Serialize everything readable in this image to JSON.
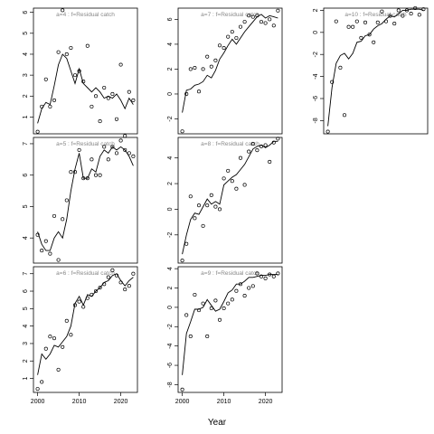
{
  "chart_data": {
    "type": "scatter",
    "layout": "3x3 grid of panels, columns filled top to bottom",
    "xlabel": "Year",
    "xlim": [
      1999,
      2024
    ],
    "xticks": [
      2000,
      2010,
      2020
    ],
    "point_style": "open circle",
    "line_style": "solid black line",
    "panels": [
      {
        "title": "a=4 : f=Residual catch",
        "ylim": [
          0.2,
          6.2
        ],
        "yticks": [
          1,
          2,
          3,
          4,
          5,
          6
        ],
        "points": {
          "x": [
            2000,
            2001,
            2002,
            2003,
            2004,
            2005,
            2006,
            2007,
            2008,
            2009,
            2010,
            2011,
            2012,
            2013,
            2014,
            2015,
            2016,
            2017,
            2018,
            2019,
            2020,
            2021,
            2022,
            2023
          ],
          "y": [
            0.3,
            1.5,
            2.8,
            1.5,
            1.8,
            4.1,
            6.1,
            4.0,
            4.3,
            3.0,
            3.2,
            2.7,
            4.4,
            1.5,
            2.0,
            0.8,
            2.4,
            1.9,
            2.1,
            0.9,
            3.5,
            0.1,
            2.2,
            1.8
          ]
        },
        "line": {
          "x": [
            2000,
            2001,
            2002,
            2003,
            2004,
            2005,
            2006,
            2007,
            2008,
            2009,
            2010,
            2011,
            2012,
            2013,
            2014,
            2015,
            2016,
            2017,
            2018,
            2019,
            2020,
            2021,
            2022,
            2023
          ],
          "y": [
            0.7,
            1.4,
            1.7,
            1.6,
            2.5,
            3.5,
            4.0,
            3.8,
            3.2,
            2.6,
            3.3,
            2.6,
            2.4,
            2.2,
            2.4,
            2.2,
            1.9,
            2.0,
            1.9,
            2.1,
            1.8,
            1.4,
            1.9,
            1.6
          ]
        }
      },
      {
        "title": "a=5 : f=Residual catch",
        "ylim": [
          3.2,
          7.2
        ],
        "yticks": [
          4,
          5,
          6,
          7
        ],
        "points": {
          "x": [
            2000,
            2001,
            2002,
            2003,
            2004,
            2005,
            2006,
            2007,
            2008,
            2009,
            2010,
            2011,
            2012,
            2013,
            2014,
            2015,
            2016,
            2017,
            2018,
            2019,
            2020,
            2021,
            2022,
            2023
          ],
          "y": [
            4.1,
            3.6,
            3.9,
            3.5,
            4.7,
            3.3,
            4.6,
            5.2,
            6.1,
            6.1,
            6.8,
            5.9,
            5.9,
            6.5,
            6.0,
            6.0,
            6.9,
            6.5,
            6.9,
            6.7,
            7.1,
            6.8,
            6.7,
            6.6
          ]
        },
        "line": {
          "x": [
            2000,
            2001,
            2002,
            2003,
            2004,
            2005,
            2006,
            2007,
            2008,
            2009,
            2010,
            2011,
            2012,
            2013,
            2014,
            2015,
            2016,
            2017,
            2018,
            2019,
            2020,
            2021,
            2022,
            2023
          ],
          "y": [
            4.2,
            3.8,
            3.6,
            3.6,
            4.0,
            4.2,
            4.0,
            4.6,
            5.5,
            6.2,
            6.7,
            5.9,
            5.9,
            6.2,
            6.1,
            6.6,
            6.8,
            6.7,
            6.9,
            6.8,
            6.9,
            6.8,
            6.6,
            6.3
          ]
        }
      },
      {
        "title": "a=6 : f=Residual catch",
        "ylim": [
          0.2,
          7.4
        ],
        "yticks": [
          1,
          2,
          3,
          4,
          5,
          6,
          7
        ],
        "points": {
          "x": [
            2000,
            2001,
            2002,
            2003,
            2004,
            2005,
            2006,
            2007,
            2008,
            2009,
            2010,
            2011,
            2012,
            2013,
            2014,
            2015,
            2016,
            2017,
            2018,
            2019,
            2020,
            2021,
            2022,
            2023
          ],
          "y": [
            0.4,
            0.8,
            2.7,
            3.4,
            3.3,
            1.5,
            2.8,
            4.3,
            3.5,
            5.2,
            5.4,
            5.1,
            5.6,
            5.8,
            6.0,
            6.2,
            6.4,
            6.8,
            7.2,
            6.9,
            6.5,
            6.1,
            6.3,
            7.0
          ]
        },
        "line": {
          "x": [
            2000,
            2001,
            2002,
            2003,
            2004,
            2005,
            2006,
            2007,
            2008,
            2009,
            2010,
            2011,
            2012,
            2013,
            2014,
            2015,
            2016,
            2017,
            2018,
            2019,
            2020,
            2021,
            2022,
            2023
          ],
          "y": [
            1.2,
            2.4,
            2.1,
            2.4,
            2.9,
            2.8,
            3.1,
            3.4,
            4.0,
            5.3,
            5.7,
            5.2,
            5.8,
            5.7,
            6.0,
            6.2,
            6.5,
            6.6,
            6.9,
            7.0,
            6.6,
            6.3,
            6.6,
            6.8
          ]
        }
      },
      {
        "title": "a=7 : f=Residual catch",
        "ylim": [
          -3.2,
          6.9
        ],
        "yticks": [
          -2,
          0,
          2,
          4,
          6
        ],
        "points": {
          "x": [
            2000,
            2001,
            2002,
            2003,
            2004,
            2005,
            2006,
            2007,
            2008,
            2009,
            2010,
            2011,
            2012,
            2013,
            2014,
            2015,
            2016,
            2017,
            2018,
            2019,
            2020,
            2021,
            2022,
            2023
          ],
          "y": [
            -3.0,
            0.0,
            2.0,
            2.1,
            0.2,
            2.0,
            3.0,
            2.2,
            2.7,
            3.9,
            3.7,
            4.6,
            5.0,
            4.5,
            5.4,
            5.8,
            6.3,
            6.2,
            6.3,
            5.8,
            5.7,
            6.0,
            5.5,
            6.7
          ]
        },
        "line": {
          "x": [
            2000,
            2001,
            2002,
            2003,
            2004,
            2005,
            2006,
            2007,
            2008,
            2009,
            2010,
            2011,
            2012,
            2013,
            2014,
            2015,
            2016,
            2017,
            2018,
            2019,
            2020,
            2021,
            2022,
            2023
          ],
          "y": [
            -1.5,
            0.3,
            0.4,
            0.7,
            0.8,
            1.0,
            1.5,
            1.3,
            1.9,
            2.8,
            3.3,
            3.9,
            4.4,
            4.0,
            4.5,
            5.0,
            5.4,
            5.8,
            6.2,
            6.4,
            6.1,
            6.3,
            6.2,
            6.1
          ]
        }
      },
      {
        "title": "a=8 : f=Residual catch",
        "ylim": [
          -4.2,
          5.6
        ],
        "yticks": [
          -2,
          0,
          2,
          4
        ],
        "points": {
          "x": [
            2000,
            2001,
            2002,
            2003,
            2004,
            2005,
            2006,
            2007,
            2008,
            2009,
            2010,
            2011,
            2012,
            2013,
            2014,
            2015,
            2016,
            2017,
            2018,
            2019,
            2020,
            2021,
            2022,
            2023
          ],
          "y": [
            -4.0,
            -2.7,
            1.0,
            -0.7,
            0.3,
            -1.3,
            0.3,
            1.1,
            0.2,
            0.0,
            2.4,
            3.0,
            2.2,
            1.6,
            4.0,
            1.9,
            4.5,
            5.1,
            4.6,
            4.9,
            5.0,
            3.7,
            5.2,
            5.5
          ]
        },
        "line": {
          "x": [
            2000,
            2001,
            2002,
            2003,
            2004,
            2005,
            2006,
            2007,
            2008,
            2009,
            2010,
            2011,
            2012,
            2013,
            2014,
            2015,
            2016,
            2017,
            2018,
            2019,
            2020,
            2021,
            2022,
            2023
          ],
          "y": [
            -3.5,
            -2.0,
            -0.8,
            -0.3,
            -0.4,
            0.2,
            0.8,
            0.4,
            0.6,
            0.4,
            1.9,
            2.2,
            2.5,
            2.7,
            3.1,
            3.5,
            4.1,
            4.7,
            4.9,
            5.0,
            4.8,
            5.0,
            5.3,
            5.3
          ]
        }
      },
      {
        "title": "a=9 : f=Residual catch",
        "ylim": [
          -8.8,
          4.2
        ],
        "yticks": [
          -8,
          -6,
          -4,
          -2,
          0,
          2,
          4
        ],
        "points": {
          "x": [
            2000,
            2001,
            2002,
            2003,
            2004,
            2005,
            2006,
            2007,
            2008,
            2009,
            2010,
            2011,
            2012,
            2013,
            2014,
            2015,
            2016,
            2017,
            2018,
            2019,
            2020,
            2021,
            2022,
            2023
          ],
          "y": [
            -8.5,
            -0.8,
            -3.0,
            1.3,
            -0.3,
            0.4,
            -3.0,
            -0.1,
            0.7,
            -1.3,
            -0.1,
            0.4,
            0.8,
            1.7,
            2.4,
            1.2,
            2.0,
            2.2,
            3.5,
            3.2,
            3.0,
            3.4,
            3.2,
            3.5
          ]
        },
        "line": {
          "x": [
            2000,
            2001,
            2002,
            2003,
            2004,
            2005,
            2006,
            2007,
            2008,
            2009,
            2010,
            2011,
            2012,
            2013,
            2014,
            2015,
            2016,
            2017,
            2018,
            2019,
            2020,
            2021,
            2022,
            2023
          ],
          "y": [
            -7.0,
            -2.7,
            -1.5,
            -0.2,
            -0.2,
            0.0,
            0.8,
            0.2,
            -0.4,
            -0.2,
            0.6,
            1.5,
            1.8,
            2.4,
            2.4,
            2.7,
            3.1,
            3.1,
            3.2,
            3.3,
            3.3,
            3.4,
            3.4,
            3.4
          ]
        }
      },
      {
        "title": "a=10 : f=Residual catch",
        "ylim": [
          -9.2,
          2.2
        ],
        "yticks": [
          -8,
          -6,
          -4,
          -2,
          0,
          2
        ],
        "points": {
          "x": [
            2000,
            2001,
            2002,
            2003,
            2004,
            2005,
            2006,
            2007,
            2008,
            2009,
            2010,
            2011,
            2012,
            2013,
            2014,
            2015,
            2016,
            2017,
            2018,
            2019,
            2020,
            2021,
            2022,
            2023
          ],
          "y": [
            -9.0,
            -4.5,
            1.0,
            -3.2,
            -7.5,
            0.5,
            0.5,
            1.0,
            -0.5,
            0.9,
            -0.2,
            -0.9,
            0.9,
            1.9,
            1.0,
            1.5,
            0.8,
            2.0,
            1.5,
            2.0,
            1.7,
            2.2,
            1.6,
            2.1
          ]
        },
        "line": {
          "x": [
            2000,
            2001,
            2002,
            2003,
            2004,
            2005,
            2006,
            2007,
            2008,
            2009,
            2010,
            2011,
            2012,
            2013,
            2014,
            2015,
            2016,
            2017,
            2018,
            2019,
            2020,
            2021,
            2022,
            2023
          ],
          "y": [
            -8.5,
            -5.0,
            -2.8,
            -2.1,
            -1.9,
            -2.4,
            -1.9,
            -0.9,
            -0.8,
            -0.3,
            -0.2,
            0.3,
            0.6,
            0.8,
            1.2,
            1.5,
            1.4,
            1.7,
            2.0,
            2.0,
            2.1,
            2.1,
            2.1,
            2.0
          ]
        }
      }
    ]
  }
}
